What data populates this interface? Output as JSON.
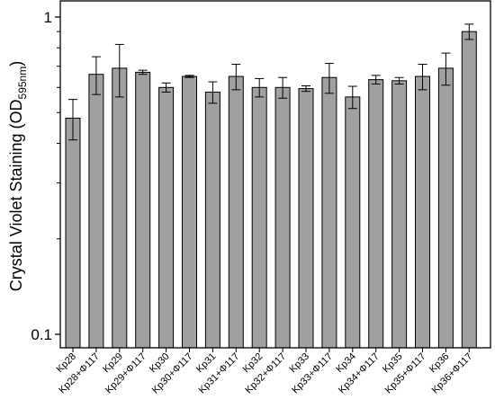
{
  "chart_data": {
    "type": "bar",
    "ylabel": "Crystal Violet Staining (OD",
    "ylabel_subscript": "595nm",
    "ylabel_close": ")",
    "yscale": "log",
    "ylim": [
      0.1,
      1
    ],
    "yticks": [
      {
        "value": 1,
        "label": "1"
      },
      {
        "value": 0.1,
        "label": "0.1"
      }
    ],
    "grid": false,
    "bar_color": "#a0a0a0",
    "categories": [
      "Kp28",
      "Kp28+Φ117",
      "Kp29",
      "Kp29+Φ117",
      "Kp30",
      "Kp30+Φ117",
      "Kp31",
      "Kp31+Φ117",
      "Kp32",
      "Kp32+Φ117",
      "Kp33",
      "Kp33+Φ117",
      "Kp34",
      "Kp34+Φ117",
      "Kp35",
      "Kp35+Φ117",
      "Kp36",
      "Kp36+Φ117"
    ],
    "values": [
      0.48,
      0.66,
      0.69,
      0.67,
      0.6,
      0.65,
      0.58,
      0.65,
      0.6,
      0.6,
      0.595,
      0.645,
      0.56,
      0.635,
      0.63,
      0.65,
      0.69,
      0.9
    ],
    "errors": [
      0.07,
      0.09,
      0.13,
      0.01,
      0.02,
      0.005,
      0.045,
      0.06,
      0.04,
      0.045,
      0.012,
      0.07,
      0.045,
      0.02,
      0.015,
      0.06,
      0.08,
      0.05
    ]
  }
}
